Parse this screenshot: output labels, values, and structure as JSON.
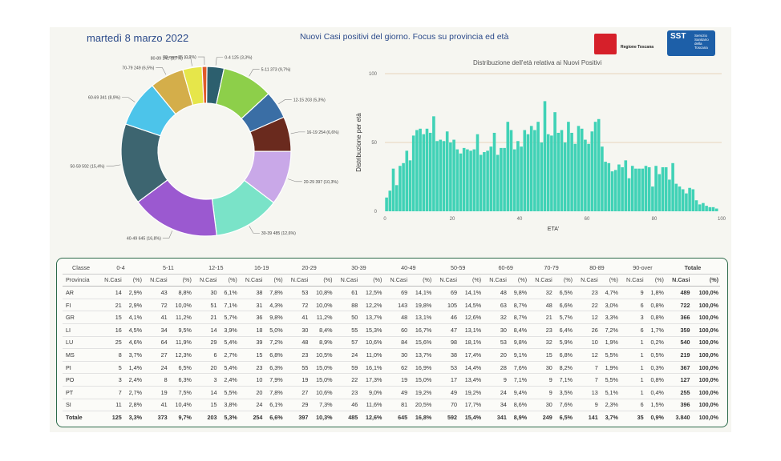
{
  "header": {
    "date": "martedì 8 marzo 2022",
    "title": "Nuovi Casi positivi del giorno. Focus su provincia ed età",
    "logo_region_text": "Regione Toscana",
    "logo_sst_text": "SST",
    "logo_sst_sub": "Servizio Sanitario della Toscana"
  },
  "colors": {
    "donut": [
      "#2c5f6e",
      "#8dcf4a",
      "#3a6ea5",
      "#6a2a1e",
      "#c9a8e8",
      "#7ae3c8",
      "#9b59d0",
      "#3d6570",
      "#4cc4ea",
      "#d4ae4a",
      "#e6e64a",
      "#e05a2a"
    ],
    "hist": "#40d2b6",
    "table_border": "#2d6a4a"
  },
  "chart_data": [
    {
      "type": "pie",
      "title": "",
      "slices": [
        {
          "label": "0-4 125 (3,3%)",
          "value": 125
        },
        {
          "label": "5-11 373 (9,7%)",
          "value": 373
        },
        {
          "label": "12-15 203 (5,3%)",
          "value": 203
        },
        {
          "label": "16-19 254 (6,6%)",
          "value": 254
        },
        {
          "label": "20-29 397 (10,3%)",
          "value": 397
        },
        {
          "label": "30-39 485 (12,6%)",
          "value": 485
        },
        {
          "label": "40-49 645 (16,8%)",
          "value": 645
        },
        {
          "label": "50-59 592 (15,4%)",
          "value": 592
        },
        {
          "label": "60-69 341 (8,9%)",
          "value": 341
        },
        {
          "label": "70-79 249 (6,5%)",
          "value": 249
        },
        {
          "label": "80-89 141 (3,7%)",
          "value": 141
        },
        {
          "label": "90-over 35 (0,9%)",
          "value": 35
        }
      ]
    },
    {
      "type": "bar",
      "title": "Distribuzione dell'età relativa ai Nuovi Positivi",
      "xlabel": "ETA'",
      "ylabel": "Distribuzione per età",
      "xlim": [
        0,
        100
      ],
      "ylim": [
        0,
        100
      ],
      "xticks": [
        "0",
        "20",
        "40",
        "60",
        "80",
        "100"
      ],
      "yticks": [
        "0",
        "50",
        "100"
      ],
      "grid": "horizontal",
      "ages": [
        0,
        1,
        2,
        3,
        4,
        5,
        6,
        7,
        8,
        9,
        10,
        11,
        12,
        13,
        14,
        15,
        16,
        17,
        18,
        19,
        20,
        21,
        22,
        23,
        24,
        25,
        26,
        27,
        28,
        29,
        30,
        31,
        32,
        33,
        34,
        35,
        36,
        37,
        38,
        39,
        40,
        41,
        42,
        43,
        44,
        45,
        46,
        47,
        48,
        49,
        50,
        51,
        52,
        53,
        54,
        55,
        56,
        57,
        58,
        59,
        60,
        61,
        62,
        63,
        64,
        65,
        66,
        67,
        68,
        69,
        70,
        71,
        72,
        73,
        74,
        75,
        76,
        77,
        78,
        79,
        80,
        81,
        82,
        83,
        84,
        85,
        86,
        87,
        88,
        89,
        90,
        91,
        92,
        93,
        94,
        95,
        96,
        97,
        98
      ],
      "values": [
        10,
        15,
        31,
        19,
        33,
        35,
        44,
        37,
        55,
        59,
        60,
        56,
        60,
        57,
        69,
        51,
        52,
        51,
        58,
        50,
        52,
        45,
        42,
        46,
        45,
        44,
        45,
        56,
        41,
        43,
        44,
        47,
        57,
        41,
        46,
        46,
        65,
        59,
        45,
        51,
        47,
        59,
        56,
        62,
        59,
        65,
        50,
        80,
        56,
        55,
        72,
        57,
        59,
        50,
        65,
        57,
        49,
        62,
        60,
        52,
        49,
        58,
        65,
        67,
        47,
        36,
        35,
        29,
        30,
        34,
        32,
        37,
        24,
        33,
        31,
        31,
        31,
        33,
        32,
        18,
        33,
        27,
        32,
        32,
        23,
        35,
        20,
        18,
        16,
        13,
        17,
        16,
        8,
        5,
        6,
        4,
        3,
        3,
        2
      ]
    },
    {
      "type": "table",
      "group_headers": [
        "Classe",
        "0-4",
        "5-11",
        "12-15",
        "16-19",
        "20-29",
        "30-39",
        "40-49",
        "50-59",
        "60-69",
        "70-79",
        "80-89",
        "90-over",
        "Totale"
      ],
      "sub_first": "Provincia",
      "sub_ncasi": "N.Casi",
      "sub_pct": "(%)",
      "rows": [
        [
          "AR",
          "14",
          "2,9%",
          "43",
          "8,8%",
          "30",
          "6,1%",
          "38",
          "7,8%",
          "53",
          "10,8%",
          "61",
          "12,5%",
          "69",
          "14,1%",
          "69",
          "14,1%",
          "48",
          "9,8%",
          "32",
          "6,5%",
          "23",
          "4,7%",
          "9",
          "1,8%",
          "489",
          "100,0%"
        ],
        [
          "FI",
          "21",
          "2,9%",
          "72",
          "10,0%",
          "51",
          "7,1%",
          "31",
          "4,3%",
          "72",
          "10,0%",
          "88",
          "12,2%",
          "143",
          "19,8%",
          "105",
          "14,5%",
          "63",
          "8,7%",
          "48",
          "6,6%",
          "22",
          "3,0%",
          "6",
          "0,8%",
          "722",
          "100,0%"
        ],
        [
          "GR",
          "15",
          "4,1%",
          "41",
          "11,2%",
          "21",
          "5,7%",
          "36",
          "9,8%",
          "41",
          "11,2%",
          "50",
          "13,7%",
          "48",
          "13,1%",
          "46",
          "12,6%",
          "32",
          "8,7%",
          "21",
          "5,7%",
          "12",
          "3,3%",
          "3",
          "0,8%",
          "366",
          "100,0%"
        ],
        [
          "LI",
          "16",
          "4,5%",
          "34",
          "9,5%",
          "14",
          "3,9%",
          "18",
          "5,0%",
          "30",
          "8,4%",
          "55",
          "15,3%",
          "60",
          "16,7%",
          "47",
          "13,1%",
          "30",
          "8,4%",
          "23",
          "6,4%",
          "26",
          "7,2%",
          "6",
          "1,7%",
          "359",
          "100,0%"
        ],
        [
          "LU",
          "25",
          "4,6%",
          "64",
          "11,9%",
          "29",
          "5,4%",
          "39",
          "7,2%",
          "48",
          "8,9%",
          "57",
          "10,6%",
          "84",
          "15,6%",
          "98",
          "18,1%",
          "53",
          "9,8%",
          "32",
          "5,9%",
          "10",
          "1,9%",
          "1",
          "0,2%",
          "540",
          "100,0%"
        ],
        [
          "MS",
          "8",
          "3,7%",
          "27",
          "12,3%",
          "6",
          "2,7%",
          "15",
          "6,8%",
          "23",
          "10,5%",
          "24",
          "11,0%",
          "30",
          "13,7%",
          "38",
          "17,4%",
          "20",
          "9,1%",
          "15",
          "6,8%",
          "12",
          "5,5%",
          "1",
          "0,5%",
          "219",
          "100,0%"
        ],
        [
          "PI",
          "5",
          "1,4%",
          "24",
          "6,5%",
          "20",
          "5,4%",
          "23",
          "6,3%",
          "55",
          "15,0%",
          "59",
          "16,1%",
          "62",
          "16,9%",
          "53",
          "14,4%",
          "28",
          "7,6%",
          "30",
          "8,2%",
          "7",
          "1,9%",
          "1",
          "0,3%",
          "367",
          "100,0%"
        ],
        [
          "PO",
          "3",
          "2,4%",
          "8",
          "6,3%",
          "3",
          "2,4%",
          "10",
          "7,9%",
          "19",
          "15,0%",
          "22",
          "17,3%",
          "19",
          "15,0%",
          "17",
          "13,4%",
          "9",
          "7,1%",
          "9",
          "7,1%",
          "7",
          "5,5%",
          "1",
          "0,8%",
          "127",
          "100,0%"
        ],
        [
          "PT",
          "7",
          "2,7%",
          "19",
          "7,5%",
          "14",
          "5,5%",
          "20",
          "7,8%",
          "27",
          "10,6%",
          "23",
          "9,0%",
          "49",
          "19,2%",
          "49",
          "19,2%",
          "24",
          "9,4%",
          "9",
          "3,5%",
          "13",
          "5,1%",
          "1",
          "0,4%",
          "255",
          "100,0%"
        ],
        [
          "SI",
          "11",
          "2,8%",
          "41",
          "10,4%",
          "15",
          "3,8%",
          "24",
          "6,1%",
          "29",
          "7,3%",
          "46",
          "11,6%",
          "81",
          "20,5%",
          "70",
          "17,7%",
          "34",
          "8,6%",
          "30",
          "7,6%",
          "9",
          "2,3%",
          "6",
          "1,5%",
          "396",
          "100,0%"
        ]
      ],
      "total_row": [
        "Totale",
        "125",
        "3,3%",
        "373",
        "9,7%",
        "203",
        "5,3%",
        "254",
        "6,6%",
        "397",
        "10,3%",
        "485",
        "12,6%",
        "645",
        "16,8%",
        "592",
        "15,4%",
        "341",
        "8,9%",
        "249",
        "6,5%",
        "141",
        "3,7%",
        "35",
        "0,9%",
        "3.840",
        "100,0%"
      ]
    }
  ]
}
